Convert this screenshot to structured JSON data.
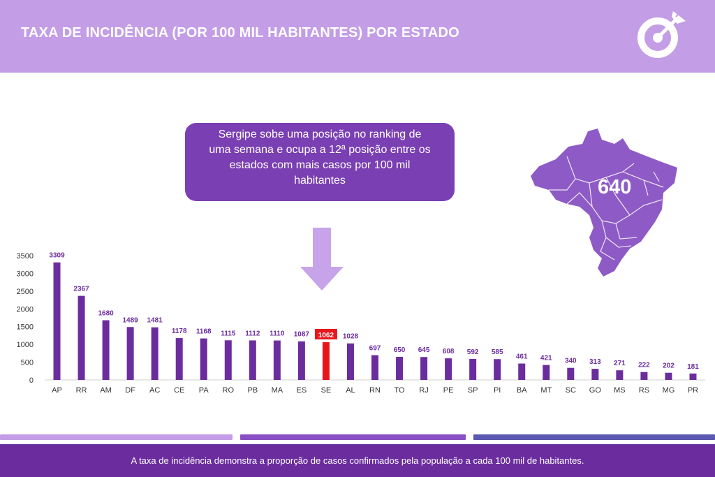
{
  "header": {
    "title": "TAXA DE INCIDÊNCIA (POR 100 MIL HABITANTES) POR ESTADO"
  },
  "callout": {
    "lines": [
      "Sergipe  sobe uma posição no ranking de",
      "uma semana e ocupa a 12ª posição entre os",
      "estados com mais casos por 100 mil",
      "habitantes"
    ]
  },
  "map": {
    "value": "640"
  },
  "colors": {
    "header": "#c39de6",
    "bar": "#6b2d9e",
    "highlight": "#e8161b",
    "callout": "#7a3fb2",
    "footer": "#6b2d9e"
  },
  "chart_data": {
    "type": "bar",
    "title": "",
    "xlabel": "",
    "ylabel": "",
    "ylim": [
      0,
      3500
    ],
    "yticks": [
      0,
      500,
      1000,
      1500,
      2000,
      2500,
      3000,
      3500
    ],
    "categories": [
      "AP",
      "RR",
      "AM",
      "DF",
      "AC",
      "CE",
      "PA",
      "RO",
      "PB",
      "MA",
      "ES",
      "SE",
      "AL",
      "RN",
      "TO",
      "RJ",
      "PE",
      "SP",
      "PI",
      "BA",
      "MT",
      "SC",
      "GO",
      "MS",
      "RS",
      "MG",
      "PR"
    ],
    "values": [
      3309,
      2367,
      1680,
      1489,
      1481,
      1178,
      1168,
      1115,
      1112,
      1110,
      1087,
      1062,
      1028,
      697,
      650,
      645,
      608,
      592,
      585,
      461,
      421,
      340,
      313,
      271,
      222,
      202,
      181
    ],
    "highlight": "SE",
    "grid": false,
    "data_labels": true
  },
  "footer": {
    "text": "A taxa de incidência demonstra a proporção de casos confirmados pela população a cada 100 mil de habitantes."
  }
}
